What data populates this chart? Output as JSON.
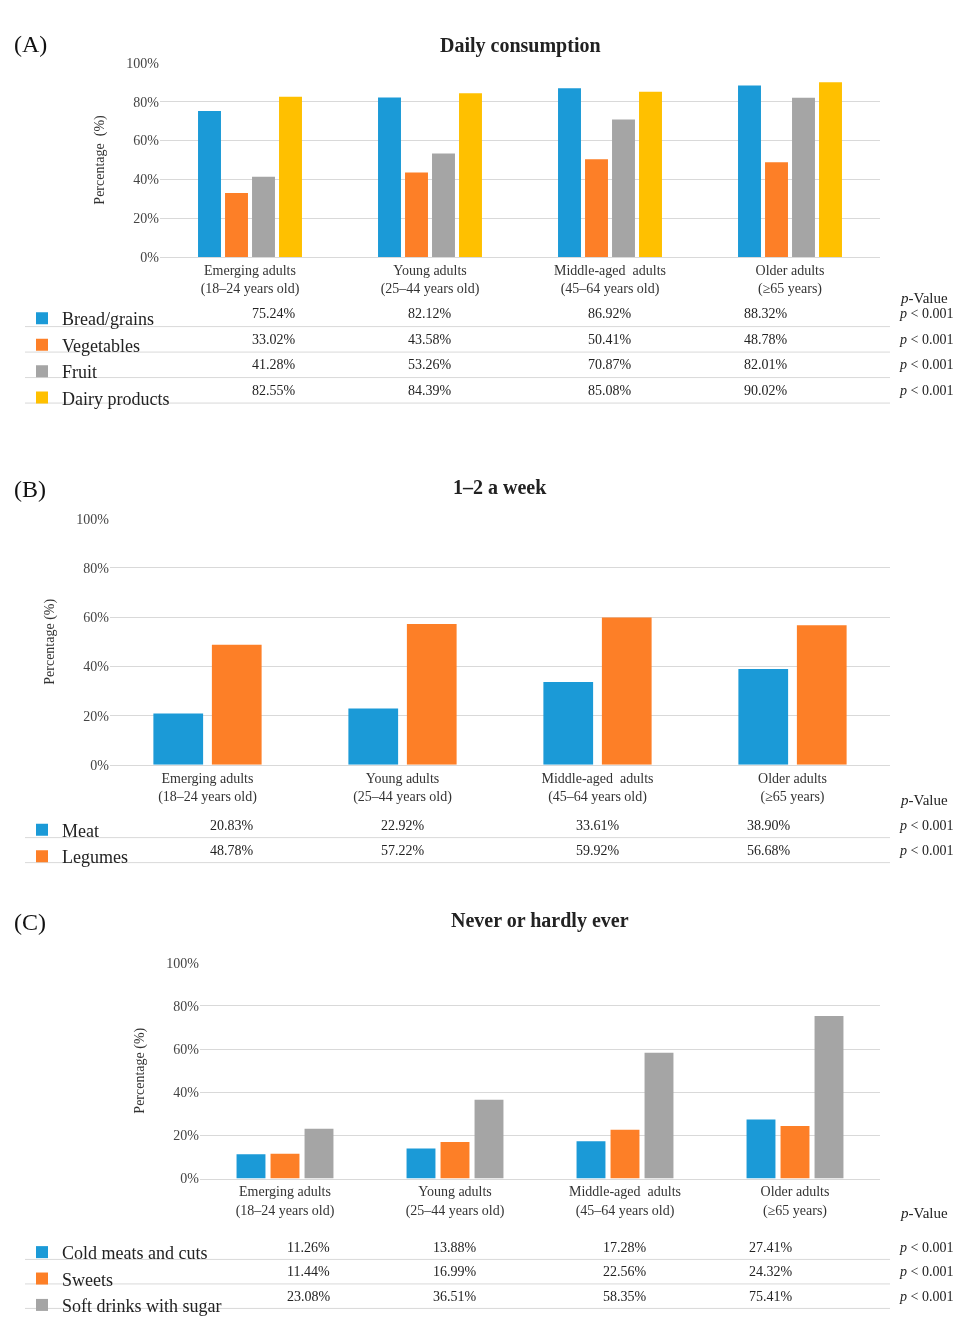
{
  "chart_data": [
    {
      "type": "bar",
      "title": "Daily consumption",
      "ylabel": "Percentage  (%)",
      "categories": [
        "Emerging adults\n(18–24 years old)",
        "Young adults\n(25–44 years old)",
        "Middle-aged  adults\n(45–64 years old)",
        "Older adults\n(≥65 years)"
      ],
      "series": [
        {
          "name": "Bread/grains",
          "color": "#1b9ad7",
          "values": [
            75.24,
            82.12,
            86.92,
            88.32
          ],
          "value_labels": [
            "75.24%",
            "82.12%",
            "86.92%",
            "88.32%"
          ]
        },
        {
          "name": "Vegetables",
          "color": "#fd7f27",
          "values": [
            33.02,
            43.58,
            50.41,
            48.78
          ],
          "value_labels": [
            "33.02%",
            "43.58%",
            "50.41%",
            "48.78%"
          ]
        },
        {
          "name": "Fruit",
          "color": "#a5a5a5",
          "values": [
            41.28,
            53.26,
            70.87,
            82.01
          ],
          "value_labels": [
            "41.28%",
            "53.26%",
            "70.87%",
            "82.01%"
          ]
        },
        {
          "name": "Dairy products",
          "color": "#ffc000",
          "values": [
            82.55,
            84.39,
            85.08,
            90.02
          ],
          "value_labels": [
            "82.55%",
            "84.39%",
            "85.08%",
            "90.02%"
          ]
        }
      ],
      "ylim": [
        0,
        100
      ],
      "yticks": [
        {
          "value": 0,
          "label": "0%"
        },
        {
          "value": 20,
          "label": "20%"
        },
        {
          "value": 40,
          "label": "40%"
        },
        {
          "value": 60,
          "label": "60%"
        },
        {
          "value": 80,
          "label": "80%"
        },
        {
          "value": 100,
          "label": "100%"
        }
      ],
      "grid": "y",
      "legend": "bottom left",
      "annotations": [
        "(A)",
        "p-Value",
        "p < 0.001",
        "p < 0.001",
        "p < 0.001",
        "p < 0.001"
      ]
    },
    {
      "type": "bar",
      "title": "1–2 a week",
      "ylabel": "Percentage (%)",
      "categories": [
        "Emerging adults\n(18–24 years old)",
        "Young adults\n(25–44 years old)",
        "Middle-aged  adults\n(45–64 years old)",
        "Older adults\n(≥65 years)"
      ],
      "series": [
        {
          "name": "Meat",
          "color": "#1b9ad7",
          "values": [
            20.83,
            22.92,
            33.61,
            38.9
          ],
          "value_labels": [
            "20.83%",
            "22.92%",
            "33.61%",
            "38.90%"
          ]
        },
        {
          "name": "Legumes",
          "color": "#fd7f27",
          "values": [
            48.78,
            57.22,
            59.92,
            56.68
          ],
          "value_labels": [
            "48.78%",
            "57.22%",
            "59.92%",
            "56.68%"
          ]
        }
      ],
      "ylim": [
        0,
        100
      ],
      "yticks": [
        {
          "value": 0,
          "label": "0%"
        },
        {
          "value": 20,
          "label": "20%"
        },
        {
          "value": 40,
          "label": "40%"
        },
        {
          "value": 60,
          "label": "60%"
        },
        {
          "value": 80,
          "label": "80%"
        },
        {
          "value": 100,
          "label": "100%"
        }
      ],
      "grid": "y",
      "legend": "bottom left",
      "annotations": [
        "(B)",
        "p-Value",
        "p < 0.001",
        "p < 0.001"
      ]
    },
    {
      "type": "bar",
      "title": "Never or hardly ever",
      "ylabel": "Percentage (%)",
      "categories": [
        "Emerging adults\n(18–24 years old)",
        "Young adults\n(25–44 years old)",
        "Middle-aged  adults\n(45–64 years old)",
        "Older adults\n(≥65 years)"
      ],
      "series": [
        {
          "name": "Cold meats and cuts",
          "color": "#1b9ad7",
          "values": [
            11.26,
            13.88,
            17.28,
            27.41
          ],
          "value_labels": [
            "11.26%",
            "13.88%",
            "17.28%",
            "27.41%"
          ]
        },
        {
          "name": "Sweets",
          "color": "#fd7f27",
          "values": [
            11.44,
            16.99,
            22.56,
            24.32
          ],
          "value_labels": [
            "11.44%",
            "16.99%",
            "22.56%",
            "24.32%"
          ]
        },
        {
          "name": "Soft drinks with sugar",
          "color": "#a5a5a5",
          "values": [
            23.08,
            36.51,
            58.35,
            75.41
          ],
          "value_labels": [
            "23.08%",
            "36.51%",
            "58.35%",
            "75.41%"
          ]
        }
      ],
      "ylim": [
        0,
        100
      ],
      "yticks": [
        {
          "value": 0,
          "label": "0%"
        },
        {
          "value": 20,
          "label": "20%"
        },
        {
          "value": 40,
          "label": "40%"
        },
        {
          "value": 60,
          "label": "60%"
        },
        {
          "value": 80,
          "label": "80%"
        },
        {
          "value": 100,
          "label": "100%"
        }
      ],
      "grid": "y",
      "legend": "bottom left",
      "annotations": [
        "(C)",
        "p-Value",
        "p < 0.001",
        "p < 0.001",
        "p < 0.001"
      ]
    }
  ]
}
